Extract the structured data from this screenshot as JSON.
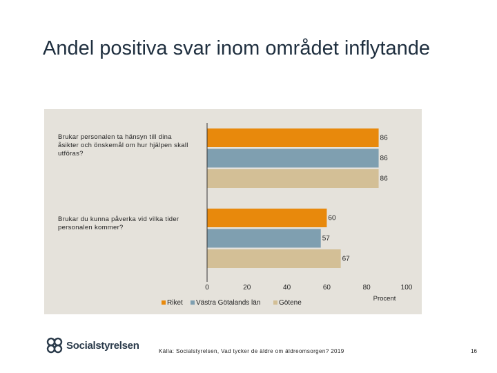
{
  "slide": {
    "title": "Andel positiva svar inom området inflytande",
    "source": "Källa: Socialstyrelsen, Vad tycker de äldre om äldreomsorgen? 2019",
    "page_number": "16",
    "logo_text": "Socialstyrelsen"
  },
  "chart_data": {
    "type": "bar",
    "orientation": "horizontal",
    "categories": [
      "Brukar personalen ta hänsyn till dina åsikter och önskemål om hur hjälpen skall utföras?",
      "Brukar du kunna påverka vid vilka tider personalen kommer?"
    ],
    "series": [
      {
        "name": "Riket",
        "color": "#e8890c",
        "values": [
          86,
          60
        ]
      },
      {
        "name": "Västra Götalands län",
        "color": "#7f9fb0",
        "values": [
          86,
          57
        ]
      },
      {
        "name": "Götene",
        "color": "#d3bf96",
        "values": [
          86,
          67
        ]
      }
    ],
    "xlim": [
      0,
      100
    ],
    "xticks": [
      0,
      20,
      40,
      60,
      80,
      100
    ],
    "xlabel": "Procent",
    "legend_position": "bottom",
    "grid": false
  }
}
